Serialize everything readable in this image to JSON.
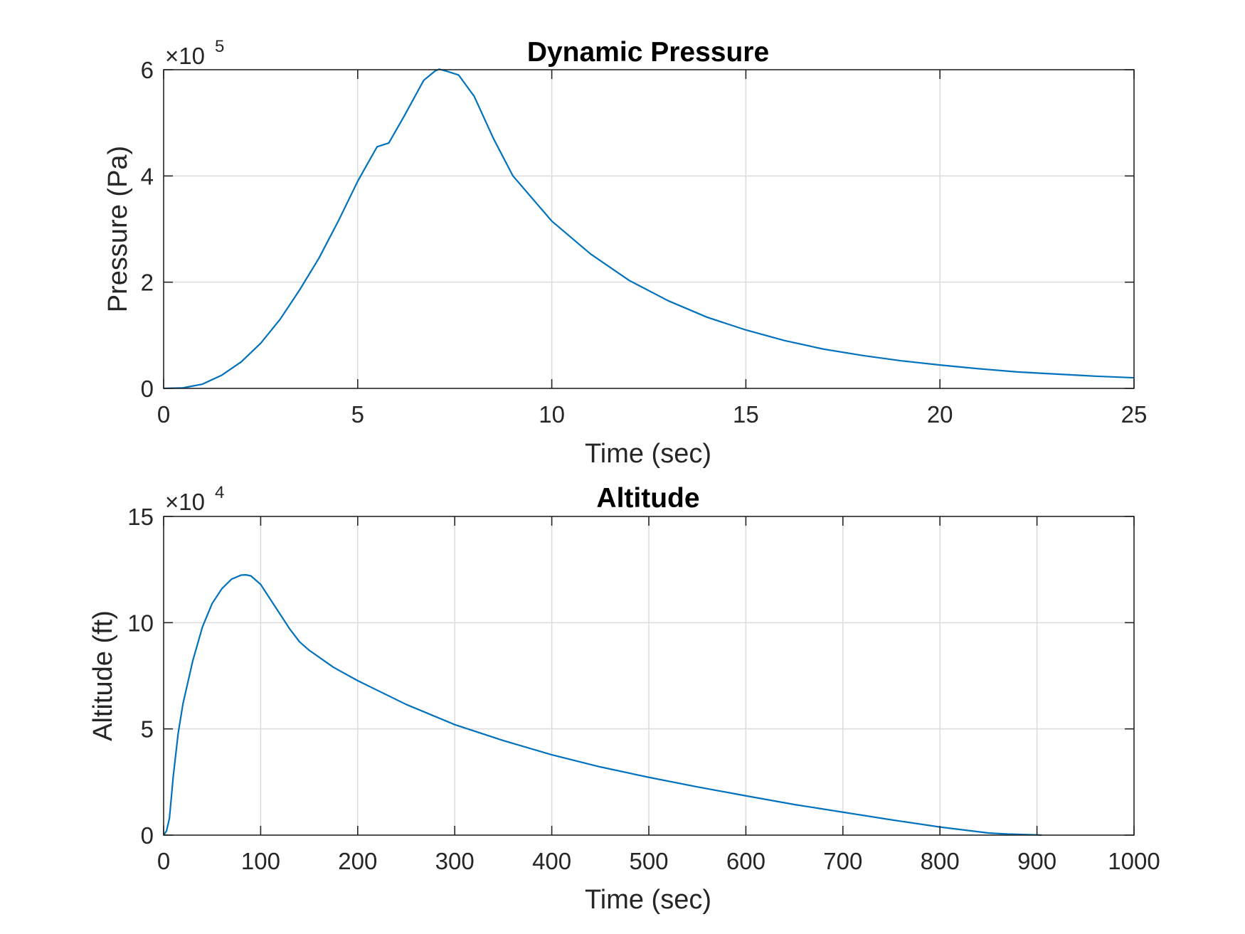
{
  "chart_data": [
    {
      "type": "line",
      "title": "Dynamic Pressure",
      "xlabel": "Time (sec)",
      "ylabel": "Pressure (Pa)",
      "xlim": [
        0,
        25
      ],
      "ylim": [
        0,
        600000
      ],
      "xticks": [
        "0",
        "5",
        "10",
        "15",
        "20",
        "25"
      ],
      "yticks": [
        "0",
        "2",
        "4",
        "6"
      ],
      "y_exponent_label": "×10",
      "y_exponent": "5",
      "grid": true,
      "color": "#0072BD",
      "series": [
        {
          "x": [
            0,
            0.5,
            1,
            1.5,
            2,
            2.5,
            3,
            3.5,
            4,
            4.5,
            5,
            5.5,
            5.8,
            6.2,
            6.7,
            7.0,
            7.1,
            7.3,
            7.6,
            8.0,
            8.5,
            9,
            10,
            11,
            12,
            13,
            14,
            15,
            16,
            17,
            18,
            19,
            20,
            21,
            22,
            23,
            24,
            25
          ],
          "y": [
            0,
            1000,
            8000,
            25000,
            50000,
            85000,
            130000,
            185000,
            245000,
            315000,
            390000,
            455000,
            462000,
            513000,
            580000,
            598000,
            601000,
            597000,
            590000,
            550000,
            470000,
            400000,
            315000,
            253000,
            203000,
            165000,
            134000,
            110000,
            90000,
            74000,
            62000,
            52000,
            44000,
            37000,
            31000,
            27000,
            23000,
            20000
          ]
        }
      ]
    },
    {
      "type": "line",
      "title": "Altitude",
      "xlabel": "Time (sec)",
      "ylabel": "Altitude (ft)",
      "xlim": [
        0,
        1000
      ],
      "ylim": [
        0,
        150000
      ],
      "xticks": [
        "0",
        "100",
        "200",
        "300",
        "400",
        "500",
        "600",
        "700",
        "800",
        "900",
        "1000"
      ],
      "yticks": [
        "0",
        "5",
        "10",
        "15"
      ],
      "y_exponent_label": "×10",
      "y_exponent": "4",
      "grid": true,
      "color": "#0072BD",
      "series": [
        {
          "x": [
            0,
            3,
            6,
            10,
            15,
            20,
            30,
            40,
            50,
            60,
            70,
            80,
            85,
            90,
            100,
            110,
            120,
            130,
            140,
            150,
            175,
            200,
            250,
            300,
            350,
            400,
            450,
            500,
            550,
            600,
            650,
            700,
            750,
            800,
            850,
            870,
            900,
            905
          ],
          "y": [
            0,
            2000,
            8000,
            28000,
            48000,
            62000,
            82000,
            98000,
            109000,
            116000,
            120500,
            122400,
            122500,
            122000,
            118000,
            111000,
            104000,
            97000,
            91000,
            87000,
            79000,
            72700,
            61500,
            52000,
            44500,
            37800,
            32100,
            27200,
            22700,
            18500,
            14400,
            10800,
            7200,
            3800,
            1000,
            500,
            100,
            0
          ]
        }
      ]
    }
  ]
}
